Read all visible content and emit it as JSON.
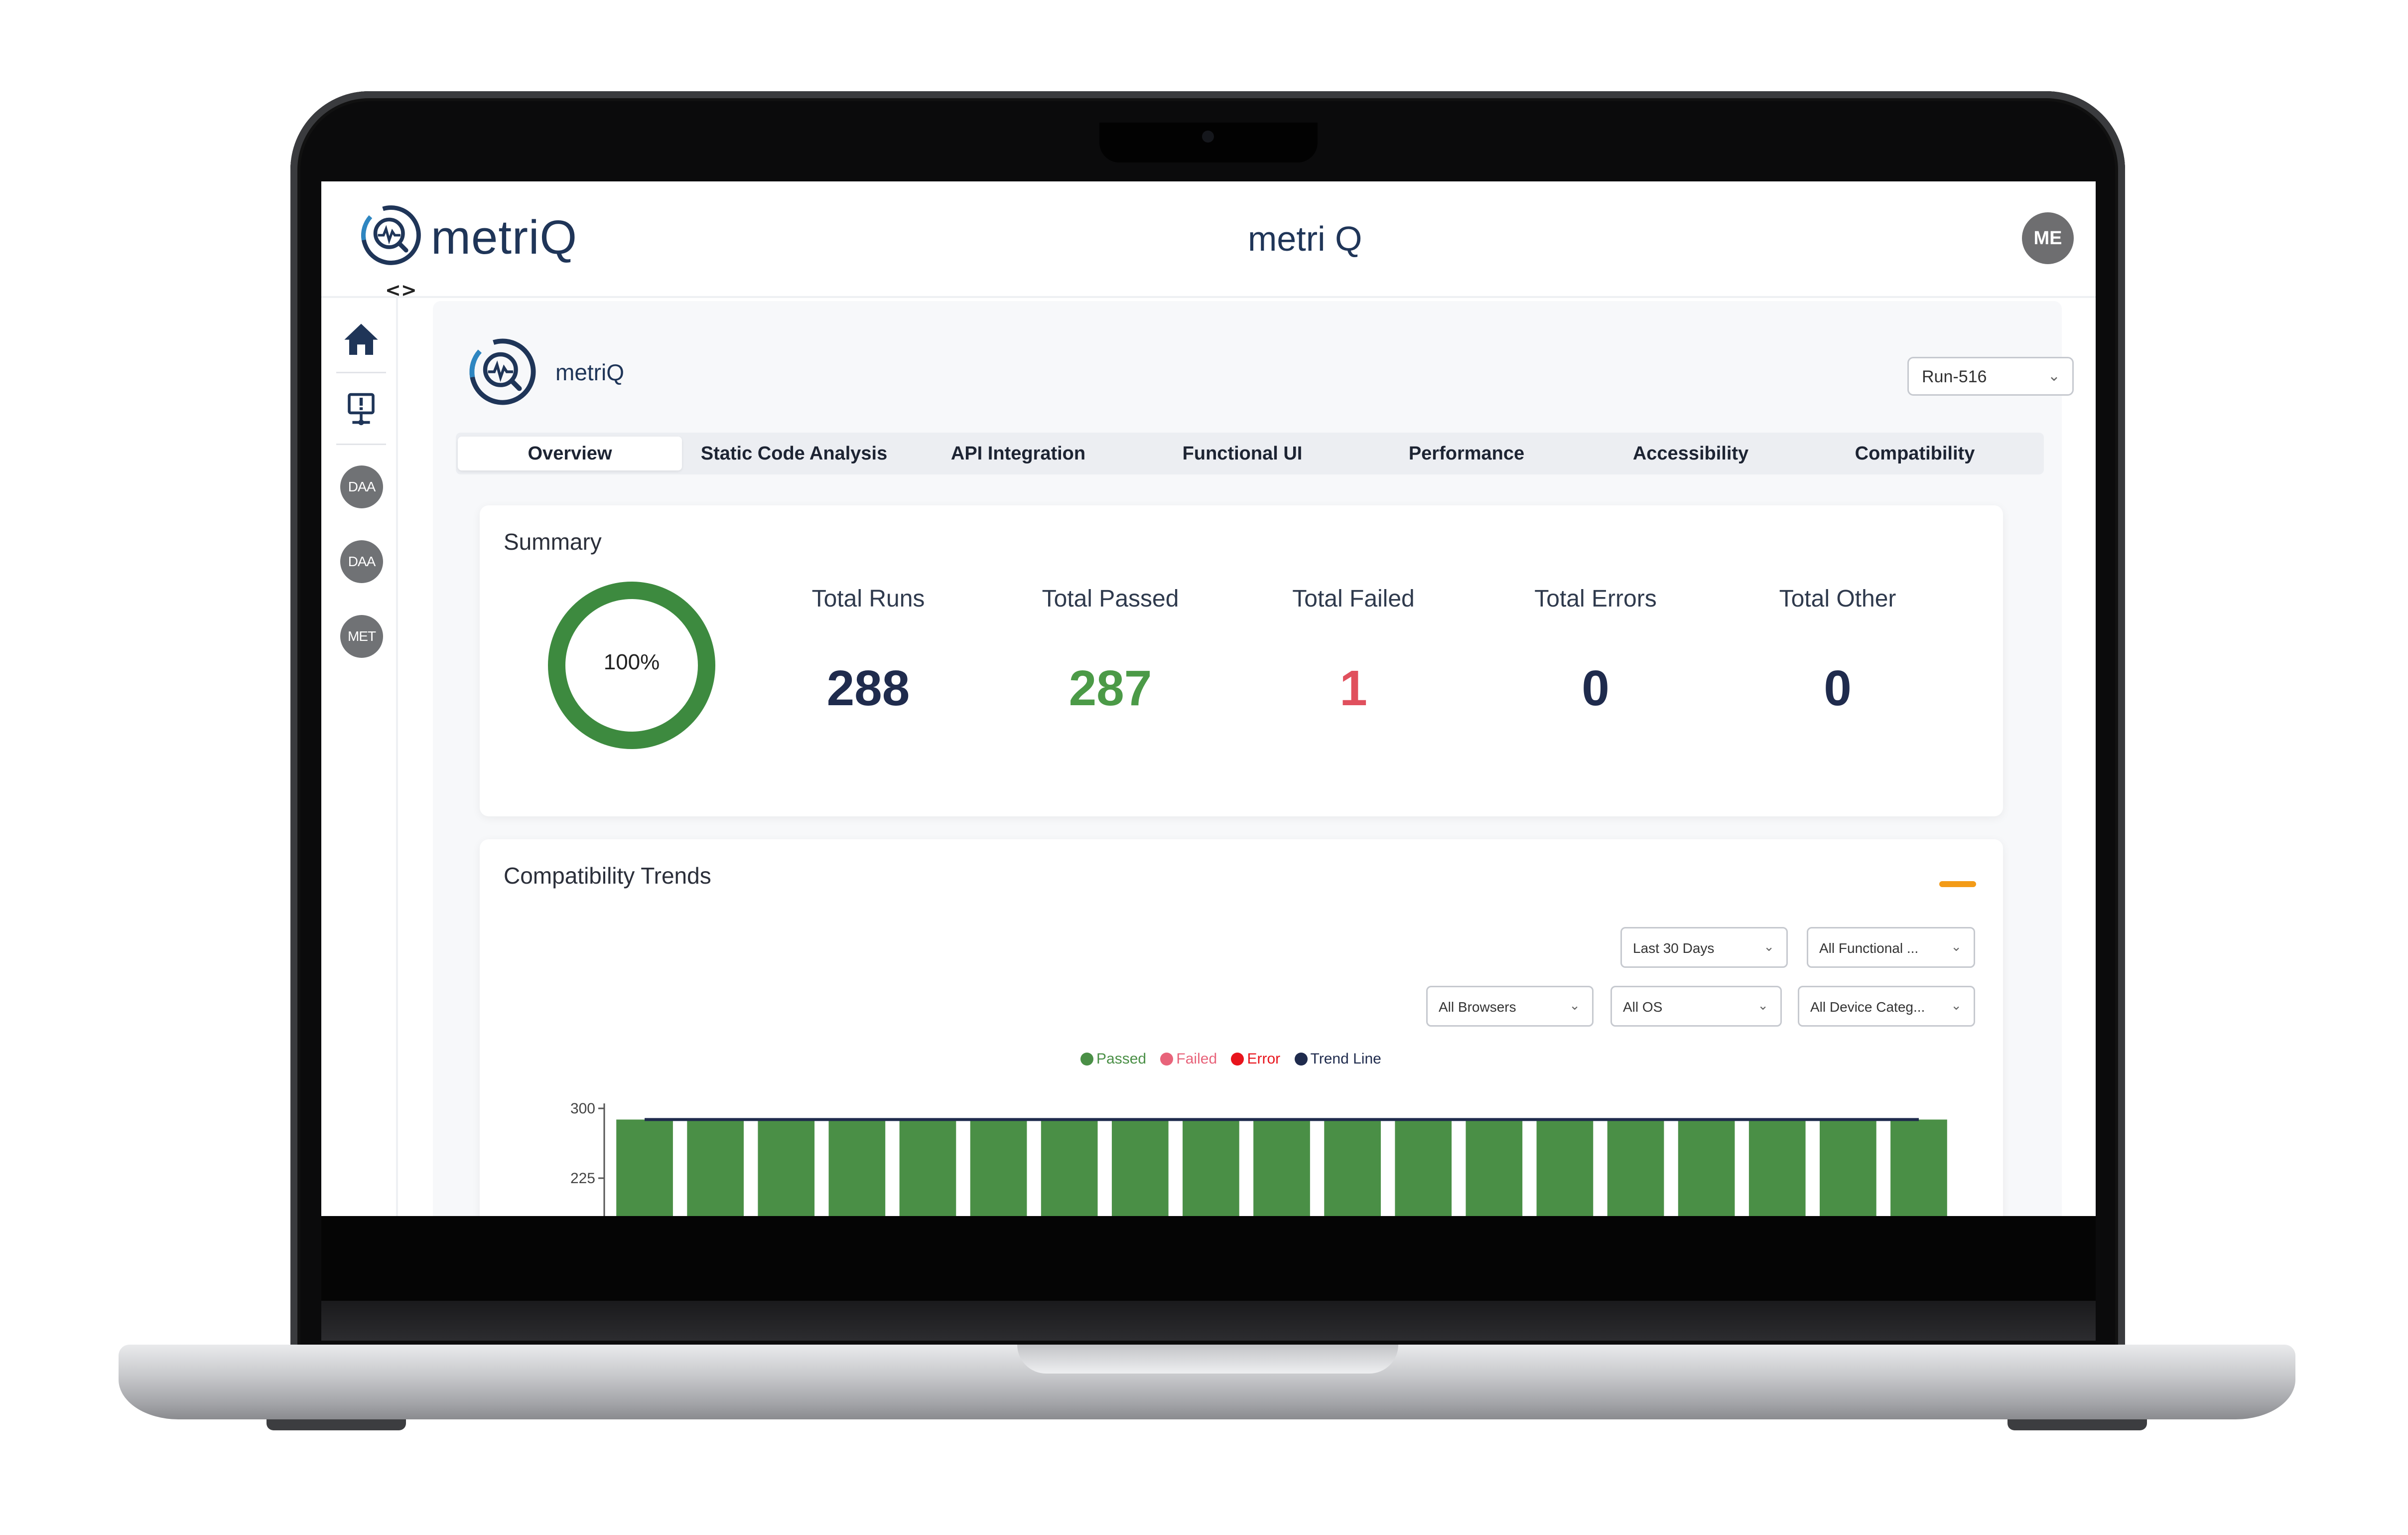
{
  "brand": {
    "name": "metriQ"
  },
  "header": {
    "center_title": "metri Q",
    "user_initials": "ME",
    "toggle_glyph": "<>"
  },
  "sidebar": {
    "items": [
      {
        "icon": "home-icon"
      },
      {
        "icon": "monitor-alert-icon"
      }
    ],
    "avatars": [
      "DAA",
      "DAA",
      "MET"
    ]
  },
  "project": {
    "name": "metriQ",
    "run_select": "Run-516"
  },
  "tabs": [
    {
      "label": "Overview",
      "active": true
    },
    {
      "label": "Static Code Analysis"
    },
    {
      "label": "API Integration"
    },
    {
      "label": "Functional UI"
    },
    {
      "label": "Performance"
    },
    {
      "label": "Accessibility"
    },
    {
      "label": "Compatibility"
    }
  ],
  "summary": {
    "title": "Summary",
    "pass_rate": "100%",
    "stats": [
      {
        "label": "Total Runs",
        "value": "288"
      },
      {
        "label": "Total Passed",
        "value": "287"
      },
      {
        "label": "Total Failed",
        "value": "1"
      },
      {
        "label": "Total Errors",
        "value": "0"
      },
      {
        "label": "Total Other",
        "value": "0"
      }
    ]
  },
  "trends": {
    "title": "Compatibility Trends",
    "filters": {
      "period": "Last 30 Days",
      "suite": "All Functional ...",
      "browsers": "All Browsers",
      "os": "All OS",
      "device": "All Device Categ..."
    },
    "legend": [
      {
        "name": "Passed",
        "color": "#4a8f46"
      },
      {
        "name": "Failed",
        "color": "#e8637a"
      },
      {
        "name": "Error",
        "color": "#e8141c"
      },
      {
        "name": "Trend Line",
        "color": "#1f2b4d"
      }
    ]
  },
  "colors": {
    "accent": "#1f3558",
    "passed": "#4a8f46",
    "failed": "#e0505d",
    "warning": "#f39b17"
  },
  "chart_data": {
    "type": "bar",
    "categories": [
      "",
      "",
      "",
      "",
      "",
      "",
      "",
      "",
      "",
      "",
      "",
      "",
      "",
      "",
      "",
      "",
      "",
      "",
      ""
    ],
    "series": [
      {
        "name": "Passed",
        "values": [
          288,
          288,
          288,
          288,
          288,
          288,
          288,
          288,
          288,
          288,
          288,
          288,
          288,
          288,
          288,
          288,
          288,
          288,
          288
        ]
      },
      {
        "name": "Trend Line",
        "values": [
          288,
          288,
          288,
          288,
          288,
          288,
          288,
          288,
          288,
          288,
          288,
          288,
          288,
          288,
          288,
          288,
          288,
          288,
          288
        ]
      }
    ],
    "y_ticks": [
      "300",
      "225"
    ],
    "ylim": [
      0,
      300
    ],
    "grid": false,
    "legend_position": "top-center"
  }
}
